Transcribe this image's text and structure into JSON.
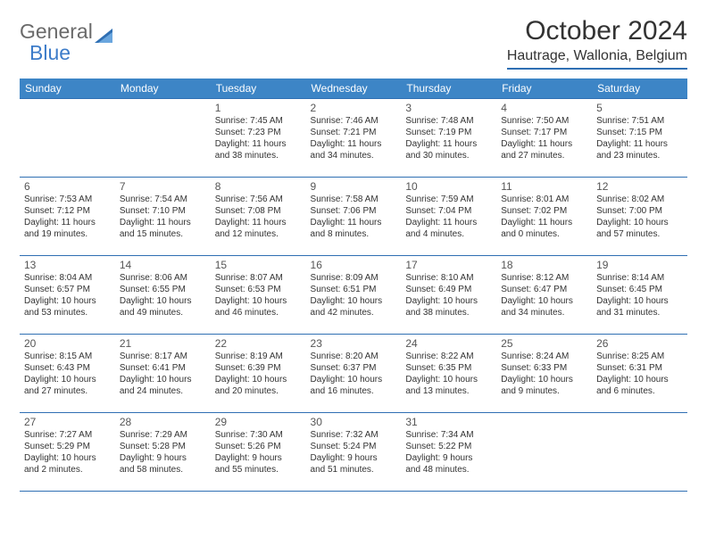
{
  "logo": {
    "text1": "General",
    "text2": "Blue"
  },
  "title": "October 2024",
  "location": "Hautrage, Wallonia, Belgium",
  "colors": {
    "header_bg": "#3d85c6",
    "border": "#2f6fb3",
    "text": "#333333",
    "logo_gray": "#6a6a6a",
    "logo_blue": "#3d7cc9",
    "background": "#ffffff"
  },
  "weekdays": [
    "Sunday",
    "Monday",
    "Tuesday",
    "Wednesday",
    "Thursday",
    "Friday",
    "Saturday"
  ],
  "rows": [
    [
      null,
      null,
      {
        "n": "1",
        "sunrise": "7:45 AM",
        "sunset": "7:23 PM",
        "d1": "11 hours",
        "d2": "and 38 minutes."
      },
      {
        "n": "2",
        "sunrise": "7:46 AM",
        "sunset": "7:21 PM",
        "d1": "11 hours",
        "d2": "and 34 minutes."
      },
      {
        "n": "3",
        "sunrise": "7:48 AM",
        "sunset": "7:19 PM",
        "d1": "11 hours",
        "d2": "and 30 minutes."
      },
      {
        "n": "4",
        "sunrise": "7:50 AM",
        "sunset": "7:17 PM",
        "d1": "11 hours",
        "d2": "and 27 minutes."
      },
      {
        "n": "5",
        "sunrise": "7:51 AM",
        "sunset": "7:15 PM",
        "d1": "11 hours",
        "d2": "and 23 minutes."
      }
    ],
    [
      {
        "n": "6",
        "sunrise": "7:53 AM",
        "sunset": "7:12 PM",
        "d1": "11 hours",
        "d2": "and 19 minutes."
      },
      {
        "n": "7",
        "sunrise": "7:54 AM",
        "sunset": "7:10 PM",
        "d1": "11 hours",
        "d2": "and 15 minutes."
      },
      {
        "n": "8",
        "sunrise": "7:56 AM",
        "sunset": "7:08 PM",
        "d1": "11 hours",
        "d2": "and 12 minutes."
      },
      {
        "n": "9",
        "sunrise": "7:58 AM",
        "sunset": "7:06 PM",
        "d1": "11 hours",
        "d2": "and 8 minutes."
      },
      {
        "n": "10",
        "sunrise": "7:59 AM",
        "sunset": "7:04 PM",
        "d1": "11 hours",
        "d2": "and 4 minutes."
      },
      {
        "n": "11",
        "sunrise": "8:01 AM",
        "sunset": "7:02 PM",
        "d1": "11 hours",
        "d2": "and 0 minutes."
      },
      {
        "n": "12",
        "sunrise": "8:02 AM",
        "sunset": "7:00 PM",
        "d1": "10 hours",
        "d2": "and 57 minutes."
      }
    ],
    [
      {
        "n": "13",
        "sunrise": "8:04 AM",
        "sunset": "6:57 PM",
        "d1": "10 hours",
        "d2": "and 53 minutes."
      },
      {
        "n": "14",
        "sunrise": "8:06 AM",
        "sunset": "6:55 PM",
        "d1": "10 hours",
        "d2": "and 49 minutes."
      },
      {
        "n": "15",
        "sunrise": "8:07 AM",
        "sunset": "6:53 PM",
        "d1": "10 hours",
        "d2": "and 46 minutes."
      },
      {
        "n": "16",
        "sunrise": "8:09 AM",
        "sunset": "6:51 PM",
        "d1": "10 hours",
        "d2": "and 42 minutes."
      },
      {
        "n": "17",
        "sunrise": "8:10 AM",
        "sunset": "6:49 PM",
        "d1": "10 hours",
        "d2": "and 38 minutes."
      },
      {
        "n": "18",
        "sunrise": "8:12 AM",
        "sunset": "6:47 PM",
        "d1": "10 hours",
        "d2": "and 34 minutes."
      },
      {
        "n": "19",
        "sunrise": "8:14 AM",
        "sunset": "6:45 PM",
        "d1": "10 hours",
        "d2": "and 31 minutes."
      }
    ],
    [
      {
        "n": "20",
        "sunrise": "8:15 AM",
        "sunset": "6:43 PM",
        "d1": "10 hours",
        "d2": "and 27 minutes."
      },
      {
        "n": "21",
        "sunrise": "8:17 AM",
        "sunset": "6:41 PM",
        "d1": "10 hours",
        "d2": "and 24 minutes."
      },
      {
        "n": "22",
        "sunrise": "8:19 AM",
        "sunset": "6:39 PM",
        "d1": "10 hours",
        "d2": "and 20 minutes."
      },
      {
        "n": "23",
        "sunrise": "8:20 AM",
        "sunset": "6:37 PM",
        "d1": "10 hours",
        "d2": "and 16 minutes."
      },
      {
        "n": "24",
        "sunrise": "8:22 AM",
        "sunset": "6:35 PM",
        "d1": "10 hours",
        "d2": "and 13 minutes."
      },
      {
        "n": "25",
        "sunrise": "8:24 AM",
        "sunset": "6:33 PM",
        "d1": "10 hours",
        "d2": "and 9 minutes."
      },
      {
        "n": "26",
        "sunrise": "8:25 AM",
        "sunset": "6:31 PM",
        "d1": "10 hours",
        "d2": "and 6 minutes."
      }
    ],
    [
      {
        "n": "27",
        "sunrise": "7:27 AM",
        "sunset": "5:29 PM",
        "d1": "10 hours",
        "d2": "and 2 minutes."
      },
      {
        "n": "28",
        "sunrise": "7:29 AM",
        "sunset": "5:28 PM",
        "d1": "9 hours",
        "d2": "and 58 minutes."
      },
      {
        "n": "29",
        "sunrise": "7:30 AM",
        "sunset": "5:26 PM",
        "d1": "9 hours",
        "d2": "and 55 minutes."
      },
      {
        "n": "30",
        "sunrise": "7:32 AM",
        "sunset": "5:24 PM",
        "d1": "9 hours",
        "d2": "and 51 minutes."
      },
      {
        "n": "31",
        "sunrise": "7:34 AM",
        "sunset": "5:22 PM",
        "d1": "9 hours",
        "d2": "and 48 minutes."
      },
      null,
      null
    ]
  ],
  "labels": {
    "sunrise": "Sunrise:",
    "sunset": "Sunset:",
    "daylight": "Daylight:"
  }
}
